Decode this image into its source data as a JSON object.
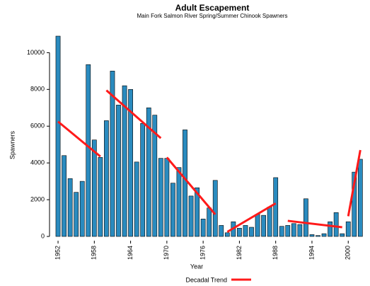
{
  "chart_data": {
    "type": "bar",
    "title": "Adult Escapement",
    "subtitle": "Main Fork Salmon River Spring/Summer Chinook Spawners",
    "x_label": "Year",
    "y_label": "Spawners",
    "color": "#2a8bbf",
    "x": [
      1952,
      1953,
      1954,
      1955,
      1956,
      1957,
      1958,
      1959,
      1960,
      1961,
      1962,
      1963,
      1964,
      1965,
      1966,
      1967,
      1968,
      1969,
      1970,
      1971,
      1972,
      1973,
      1974,
      1975,
      1976,
      1977,
      1978,
      1979,
      1980,
      1981,
      1982,
      1983,
      1984,
      1985,
      1986,
      1987,
      1988,
      1989,
      1990,
      1991,
      1992,
      1993,
      1994,
      1995,
      1996,
      1997,
      1998,
      1999,
      2000,
      2001,
      2002
    ],
    "values": [
      10900,
      4400,
      3150,
      2400,
      3000,
      9350,
      5250,
      4300,
      6300,
      9000,
      7150,
      8200,
      8000,
      4050,
      6150,
      7000,
      6600,
      4250,
      4250,
      2900,
      3750,
      5800,
      2200,
      2650,
      950,
      1550,
      3050,
      600,
      200,
      800,
      450,
      600,
      500,
      1200,
      1150,
      1600,
      3200,
      550,
      600,
      700,
      650,
      2050,
      100,
      50,
      150,
      800,
      1300,
      150,
      800,
      3500,
      4200
    ],
    "xlim": [
      1951,
      2003.6
    ],
    "xticks": [
      1952,
      1958,
      1964,
      1970,
      1976,
      1982,
      1988,
      1994,
      2000
    ],
    "ylim": [
      0,
      10400
    ],
    "yticks": [
      0,
      2000,
      4000,
      6000,
      8000,
      10000
    ],
    "trend": {
      "name": "Decadal Trend",
      "color": "#ff1a1a",
      "segments": [
        {
          "x": [
            1952,
            1959
          ],
          "values": [
            6250,
            4350
          ]
        },
        {
          "x": [
            1960,
            1969
          ],
          "values": [
            7950,
            5350
          ]
        },
        {
          "x": [
            1970,
            1978
          ],
          "values": [
            4300,
            1200
          ]
        },
        {
          "x": [
            1980,
            1988
          ],
          "values": [
            250,
            1800
          ]
        },
        {
          "x": [
            1990,
            1999
          ],
          "values": [
            850,
            500
          ]
        },
        {
          "x": [
            2000,
            2002
          ],
          "values": [
            1100,
            4700
          ]
        }
      ]
    }
  }
}
